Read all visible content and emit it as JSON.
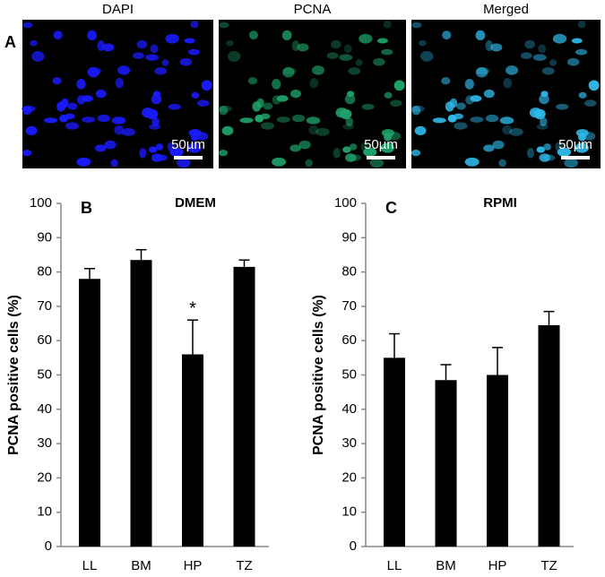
{
  "panel_a": {
    "label": "A",
    "images": [
      {
        "title": "DAPI",
        "scale_bar": "50µm",
        "color": "#1a1aff"
      },
      {
        "title": "PCNA",
        "scale_bar": "50µm",
        "color": "#1fa36a"
      },
      {
        "title": "Merged",
        "scale_bar": "50µm",
        "color": "#2fb8e8"
      }
    ]
  },
  "chart_data": [
    {
      "type": "bar",
      "panel": "B",
      "title": "DMEM",
      "y_label": "PCNA positive cells (%)",
      "categories": [
        "LL",
        "BM",
        "HP",
        "TZ"
      ],
      "values": [
        78,
        83.5,
        56,
        81.5
      ],
      "errors": [
        3,
        3,
        10,
        2
      ],
      "color": "#000000",
      "ylim": [
        0,
        100
      ],
      "yticks": [
        0,
        10,
        20,
        30,
        40,
        50,
        60,
        70,
        80,
        90,
        100
      ],
      "annotations": [
        {
          "text": "*",
          "x": "HP"
        }
      ]
    },
    {
      "type": "bar",
      "panel": "C",
      "title": "RPMI",
      "y_label": "PCNA positive cells (%)",
      "categories": [
        "LL",
        "BM",
        "HP",
        "TZ"
      ],
      "values": [
        55,
        48.5,
        50,
        64.5
      ],
      "errors": [
        7,
        4.5,
        8,
        4
      ],
      "color": "#000000",
      "ylim": [
        0,
        100
      ],
      "yticks": [
        0,
        10,
        20,
        30,
        40,
        50,
        60,
        70,
        80,
        90,
        100
      ]
    }
  ]
}
